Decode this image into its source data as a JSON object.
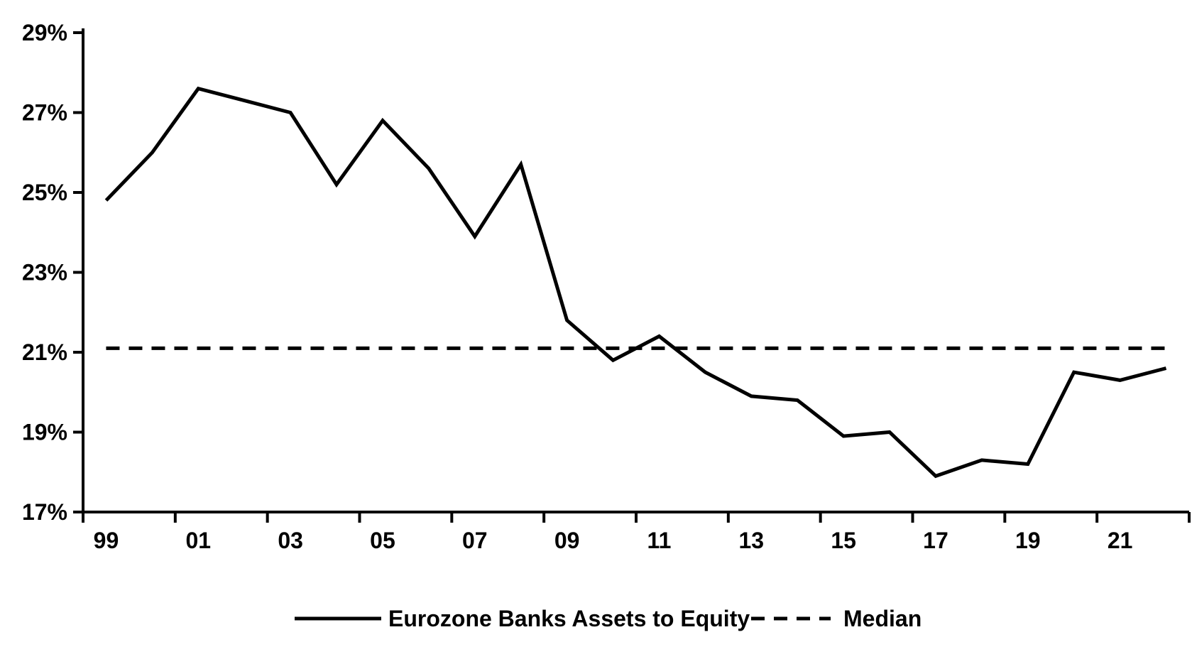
{
  "colors": {
    "background": "#ffffff",
    "axis": "#000000",
    "text": "#000000",
    "series_line": "#000000",
    "median_line": "#000000"
  },
  "chart_data": {
    "type": "line",
    "title": "",
    "xlabel": "",
    "ylabel": "",
    "grid": false,
    "legend_position": "bottom-center",
    "x": [
      1999,
      2000,
      2001,
      2002,
      2003,
      2004,
      2005,
      2006,
      2007,
      2008,
      2009,
      2010,
      2011,
      2012,
      2013,
      2014,
      2015,
      2016,
      2017,
      2018,
      2019,
      2020,
      2021,
      2022
    ],
    "series": [
      {
        "name": "Eurozone Banks Assets to Equity",
        "style": "solid",
        "values": [
          24.8,
          26.0,
          27.6,
          27.3,
          27.0,
          25.2,
          26.8,
          25.6,
          23.9,
          25.7,
          21.8,
          20.8,
          21.4,
          20.5,
          19.9,
          19.8,
          18.9,
          19.0,
          17.9,
          18.3,
          18.2,
          20.5,
          20.3,
          20.6
        ]
      },
      {
        "name": "Median",
        "style": "dashed",
        "constant_value": 21.1
      }
    ],
    "y_axis": {
      "min": 17,
      "max": 29,
      "tick_step": 2,
      "ticks": [
        {
          "value": 29,
          "label": "29%"
        },
        {
          "value": 27,
          "label": "27%"
        },
        {
          "value": 25,
          "label": "25%"
        },
        {
          "value": 23,
          "label": "23%"
        },
        {
          "value": 21,
          "label": "21%"
        },
        {
          "value": 19,
          "label": "19%"
        },
        {
          "value": 17,
          "label": "17%"
        }
      ]
    },
    "x_axis": {
      "labels": [
        {
          "year": 1999,
          "label": "99"
        },
        {
          "year": 2001,
          "label": "01"
        },
        {
          "year": 2003,
          "label": "03"
        },
        {
          "year": 2005,
          "label": "05"
        },
        {
          "year": 2007,
          "label": "07"
        },
        {
          "year": 2009,
          "label": "09"
        },
        {
          "year": 2011,
          "label": "11"
        },
        {
          "year": 2013,
          "label": "13"
        },
        {
          "year": 2015,
          "label": "15"
        },
        {
          "year": 2017,
          "label": "17"
        },
        {
          "year": 2019,
          "label": "19"
        },
        {
          "year": 2021,
          "label": "21"
        }
      ]
    },
    "legend": [
      {
        "label": "Eurozone Banks Assets to Equity",
        "style": "solid"
      },
      {
        "label": "Median",
        "style": "dashed"
      }
    ]
  }
}
